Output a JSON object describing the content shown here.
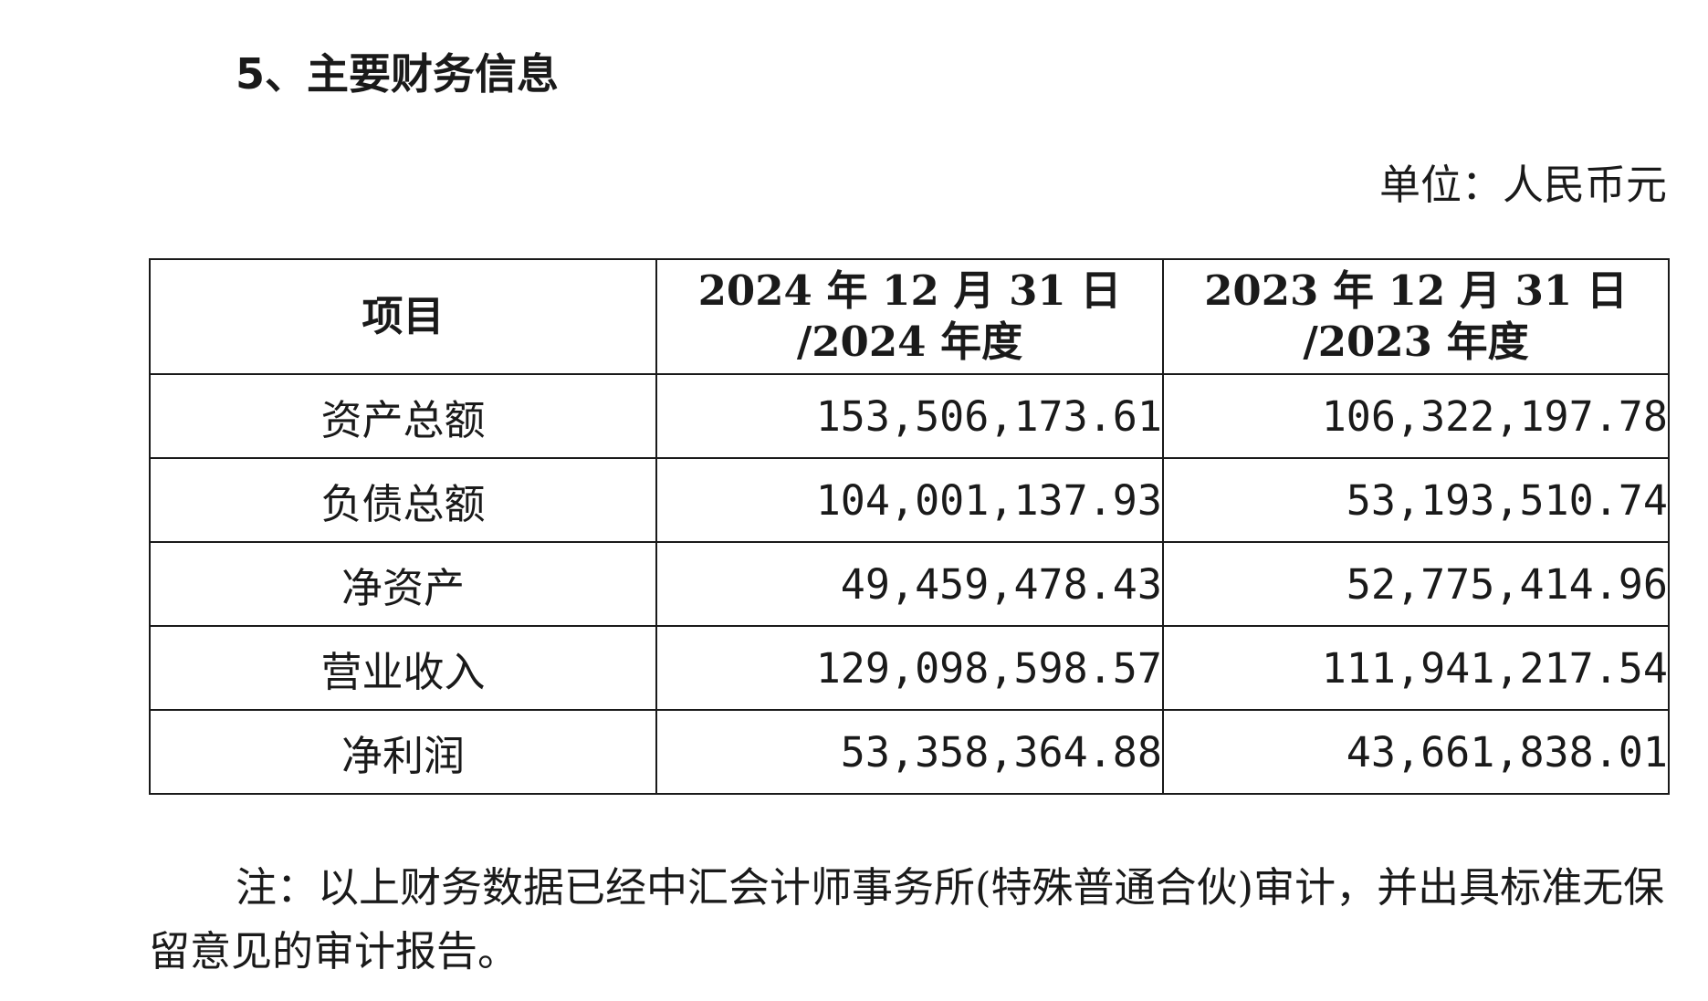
{
  "section_title": "5、主要财务信息",
  "unit_label": "单位：人民币元",
  "table": {
    "headers": {
      "item": "项目",
      "col_2024_line1": "2024 年 12 月 31 日",
      "col_2024_line2": "/2024 年度",
      "col_2023_line1": "2023 年 12 月 31 日",
      "col_2023_line2": "/2023 年度"
    },
    "rows": [
      {
        "label": "资产总额",
        "v2024": "153,506,173.61",
        "v2023": "106,322,197.78"
      },
      {
        "label": "负债总额",
        "v2024": "104,001,137.93",
        "v2023": "53,193,510.74"
      },
      {
        "label": "净资产",
        "v2024": "49,459,478.43",
        "v2023": "52,775,414.96"
      },
      {
        "label": "营业收入",
        "v2024": "129,098,598.57",
        "v2023": "111,941,217.54"
      },
      {
        "label": "净利润",
        "v2024": "53,358,364.88",
        "v2023": "43,661,838.01"
      }
    ]
  },
  "note": "注：以上财务数据已经中汇会计师事务所(特殊普通合伙)审计，并出具标准无保留意见的审计报告。"
}
